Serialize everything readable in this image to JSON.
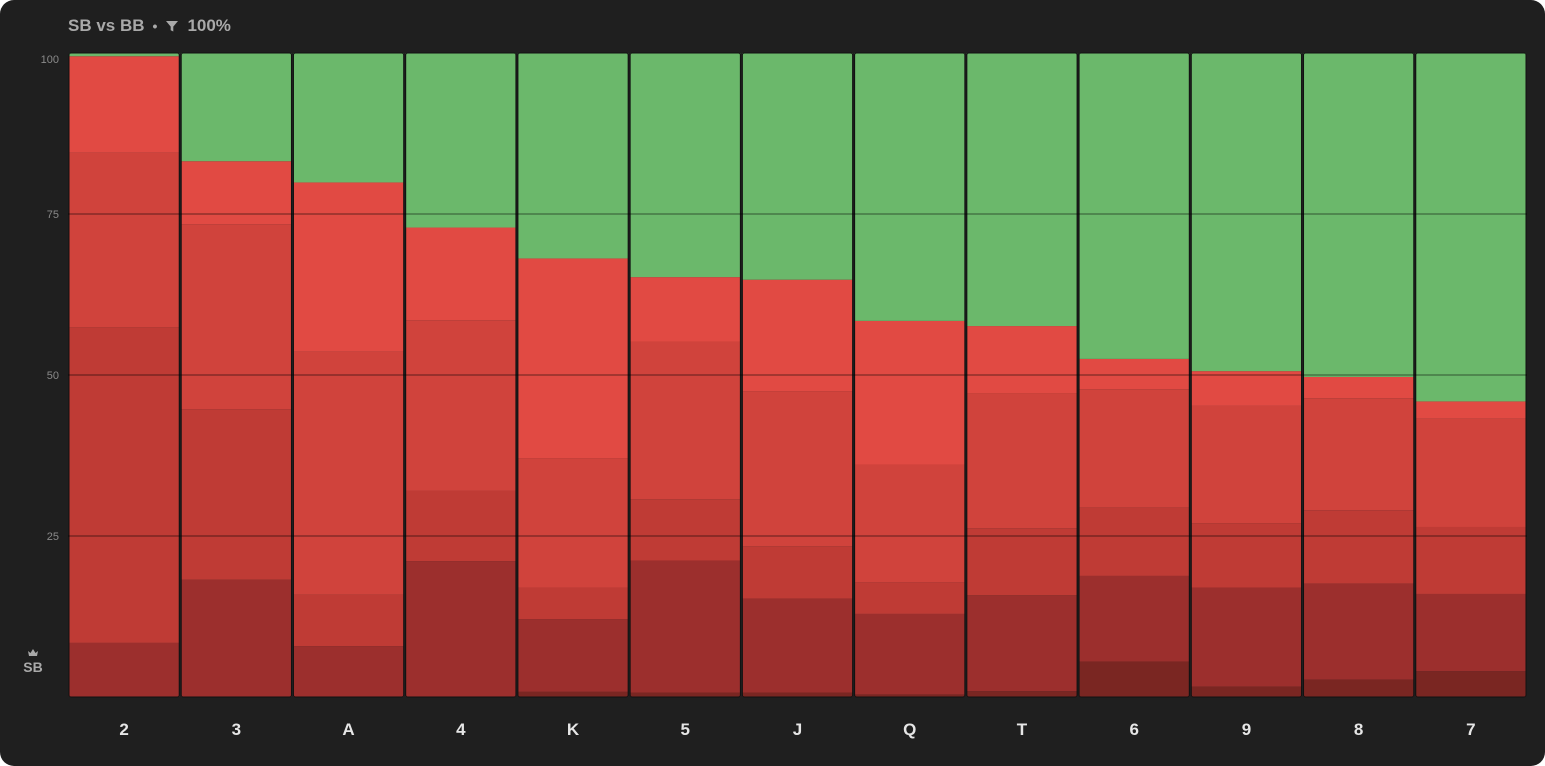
{
  "header": {
    "title": "SB vs BB",
    "separator": "•",
    "filter_value": "100%"
  },
  "player_label": "SB",
  "colors": {
    "background": "#1f1f1f",
    "stack": [
      "#6bb86b",
      "#e14a43",
      "#d0433c",
      "#bf3b35",
      "#9c2f2d",
      "#7a2622"
    ],
    "grid": "#000000"
  },
  "chart_data": {
    "type": "bar",
    "stacked": true,
    "title": "SB vs BB",
    "xlabel": "",
    "ylabel": "",
    "ylim": [
      0,
      100
    ],
    "yticks": [
      25,
      50,
      75,
      100
    ],
    "grid": true,
    "categories": [
      "2",
      "3",
      "A",
      "4",
      "K",
      "5",
      "J",
      "Q",
      "T",
      "6",
      "9",
      "8",
      "7"
    ],
    "segments": [
      {
        "color": "#6bb86b",
        "values": [
          0.5,
          16.8,
          20.1,
          27.1,
          31.9,
          34.8,
          35.2,
          41.6,
          42.4,
          47.5,
          49.4,
          50.3,
          54.1
        ]
      },
      {
        "color": "#e14a43",
        "values": [
          15.0,
          9.8,
          26.3,
          14.4,
          31.0,
          10.0,
          17.3,
          22.3,
          10.4,
          4.7,
          5.4,
          3.3,
          2.7
        ]
      },
      {
        "color": "#d0433c",
        "values": [
          27.1,
          28.7,
          37.7,
          26.5,
          20.1,
          24.5,
          24.1,
          18.3,
          21.0,
          18.4,
          18.2,
          17.4,
          16.8
        ]
      },
      {
        "color": "#bf3b35",
        "values": [
          49.0,
          26.5,
          8.0,
          10.9,
          4.9,
          9.5,
          8.1,
          4.9,
          10.4,
          10.6,
          10.0,
          11.4,
          10.4
        ]
      },
      {
        "color": "#9c2f2d",
        "values": [
          8.4,
          18.2,
          7.9,
          21.1,
          11.3,
          20.5,
          14.6,
          12.5,
          14.9,
          13.3,
          15.4,
          14.9,
          12.0
        ]
      },
      {
        "color": "#7a2622",
        "values": [
          0,
          0,
          0,
          0,
          0.8,
          0.7,
          0.7,
          0.4,
          0.9,
          5.5,
          1.6,
          2.7,
          4.0
        ]
      }
    ]
  }
}
